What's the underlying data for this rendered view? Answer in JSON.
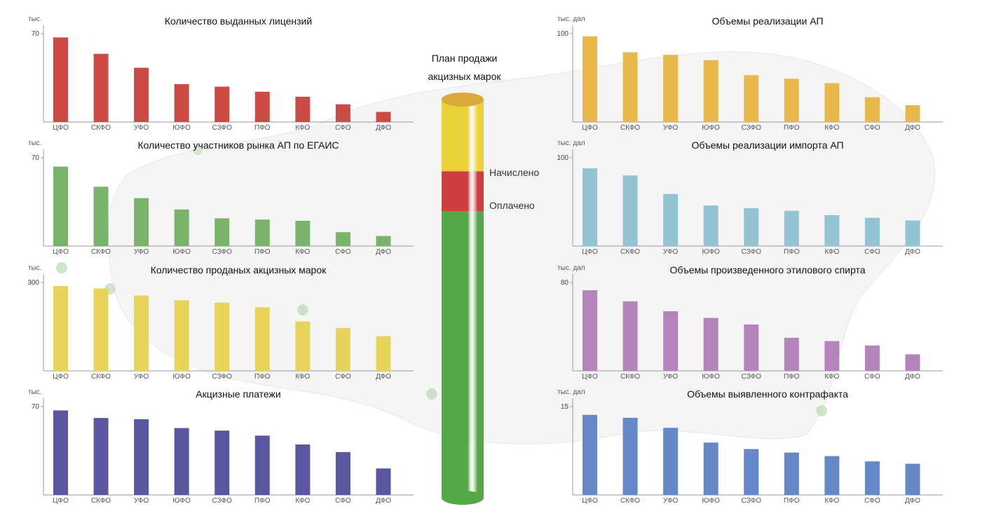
{
  "cylinder": {
    "title_line1": "План продажи",
    "title_line2": "акцизных марок",
    "label_accrued": "Начислено",
    "label_paid": "Оплачено",
    "accrued_fraction": 0.82,
    "paid_fraction": 0.72,
    "colors": {
      "plan": "#ecd23a",
      "accrued": "#cf3f3f",
      "paid": "#55a848"
    }
  },
  "chart_data": [
    {
      "type": "bar",
      "title": "Количество выданных лицензий",
      "unit": "тыс.",
      "color": "#cc4c45",
      "ylim": [
        0,
        70
      ],
      "yticks": [
        70
      ],
      "categories": [
        "ЦФО",
        "СКФО",
        "УФО",
        "ЮФО",
        "СЗФО",
        "ПФО",
        "КФО",
        "СФО",
        "ДФО"
      ],
      "values": [
        67,
        54,
        43,
        30,
        28,
        24,
        20,
        14,
        8
      ]
    },
    {
      "type": "bar",
      "title": "Количество участников рынка АП по ЕГАИС",
      "unit": "тыс.",
      "color": "#7ab46a",
      "ylim": [
        0,
        70
      ],
      "yticks": [
        70
      ],
      "categories": [
        "ЦФО",
        "СКФО",
        "УФО",
        "ЮФО",
        "СЗФО",
        "ПФО",
        "КФО",
        "СФО",
        "ДФО"
      ],
      "values": [
        63,
        47,
        38,
        29,
        22,
        21,
        20,
        11,
        8
      ]
    },
    {
      "type": "bar",
      "title": "Количество проданых акцизных марок",
      "unit": "тыс.",
      "color": "#e8d45b",
      "ylim": [
        0,
        300
      ],
      "yticks": [
        300
      ],
      "categories": [
        "ЦФО",
        "СКФО",
        "УФО",
        "ЮФО",
        "СЗФО",
        "ПФО",
        "КФО",
        "СФО",
        "ДФО"
      ],
      "values": [
        288,
        280,
        256,
        240,
        232,
        216,
        168,
        146,
        118
      ]
    },
    {
      "type": "bar",
      "title": "Акцизные платежи",
      "unit": "тыс.",
      "color": "#5b56a0",
      "ylim": [
        0,
        70
      ],
      "yticks": [
        70
      ],
      "categories": [
        "ЦФО",
        "СКФО",
        "УФО",
        "ЮФО",
        "СЗФО",
        "ПФО",
        "КФО",
        "СФО",
        "ДФО"
      ],
      "values": [
        67,
        61,
        60,
        53,
        51,
        47,
        40,
        34,
        21
      ]
    },
    {
      "type": "bar",
      "title": "Объемы реализации АП",
      "unit": "тыс. дал",
      "color": "#e8b84a",
      "ylim": [
        0,
        100
      ],
      "yticks": [
        100
      ],
      "categories": [
        "ЦФО",
        "СКФО",
        "УФО",
        "ЮФО",
        "СЗФО",
        "ПФО",
        "КФО",
        "СФО",
        "ДФО"
      ],
      "values": [
        97,
        79,
        76,
        70,
        53,
        49,
        44,
        28,
        19
      ]
    },
    {
      "type": "bar",
      "title": "Объемы реализации импорта АП",
      "unit": "тыс. дал",
      "color": "#92c4d4",
      "ylim": [
        0,
        100
      ],
      "yticks": [
        100
      ],
      "categories": [
        "ЦФО",
        "СКФО",
        "УФО",
        "ЮФО",
        "СЗФО",
        "ПФО",
        "КФО",
        "СФО",
        "ДФО"
      ],
      "values": [
        88,
        80,
        59,
        46,
        43,
        40,
        35,
        32,
        29
      ]
    },
    {
      "type": "bar",
      "title": "Объемы произведенного этилового спирта",
      "unit": "тыс. дал",
      "color": "#b485bb",
      "ylim": [
        0,
        80
      ],
      "yticks": [
        80
      ],
      "categories": [
        "ЦФО",
        "СКФО",
        "УФО",
        "ЮФО",
        "СЗФО",
        "ПФО",
        "КФО",
        "СФО",
        "ДФО"
      ],
      "values": [
        73,
        63,
        54,
        48,
        42,
        30,
        27,
        23,
        15
      ]
    },
    {
      "type": "bar",
      "title": "Объемы выявленного контрафакта",
      "unit": "тыс. дал",
      "color": "#6488c8",
      "ylim": [
        0,
        15
      ],
      "yticks": [
        15
      ],
      "categories": [
        "ЦФО",
        "СКФО",
        "УФО",
        "ЮФО",
        "СЗФО",
        "ПФО",
        "КФО",
        "СФО",
        "ДФО"
      ],
      "values": [
        13.6,
        13.1,
        11.4,
        8.9,
        7.8,
        7.2,
        6.6,
        5.7,
        5.3
      ]
    }
  ]
}
